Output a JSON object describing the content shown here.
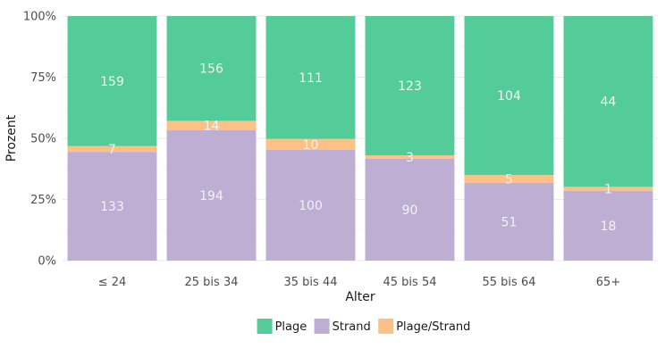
{
  "chart_data": {
    "type": "bar",
    "stacked": "percent",
    "title": "",
    "xlabel": "Alter",
    "ylabel": "Prozent",
    "ylim": [
      0,
      1
    ],
    "y_ticks": [
      "0%",
      "25%",
      "50%",
      "75%",
      "100%"
    ],
    "categories": [
      "≤ 24",
      "25 bis 34",
      "35 bis 44",
      "45 bis 54",
      "55 bis 64",
      "65+"
    ],
    "series": [
      {
        "name": "Strand",
        "color": "#BEAED4",
        "values": [
          133,
          194,
          100,
          90,
          51,
          18
        ]
      },
      {
        "name": "Plage/Strand",
        "color": "#FDC086",
        "values": [
          7,
          14,
          10,
          3,
          5,
          1
        ]
      },
      {
        "name": "Plage",
        "color": "#54CC99",
        "values": [
          159,
          156,
          111,
          123,
          104,
          44
        ]
      }
    ],
    "legend": {
      "position": "bottom",
      "order": [
        "Plage",
        "Strand",
        "Plage/Strand"
      ]
    },
    "grid": true
  }
}
